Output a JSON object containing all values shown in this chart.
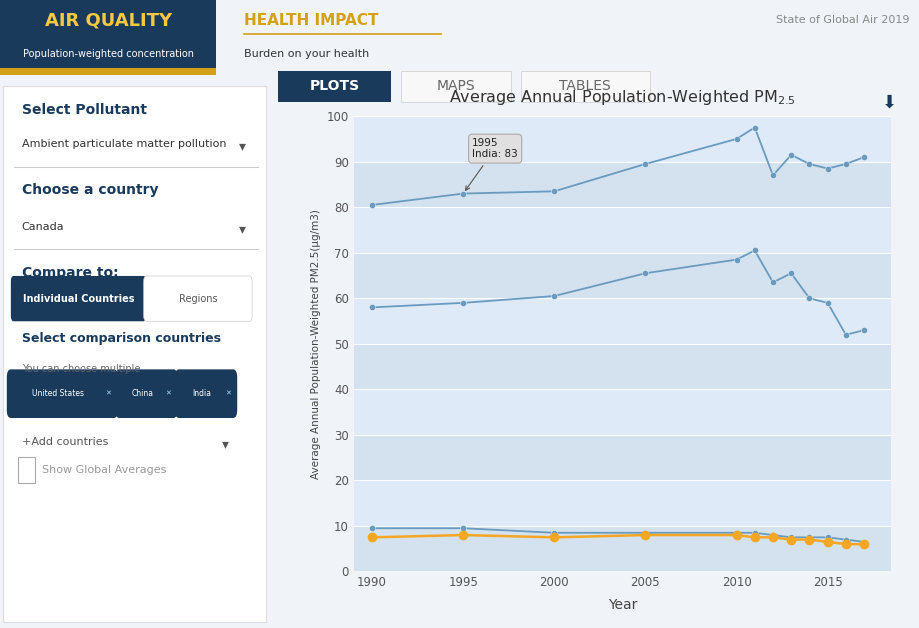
{
  "title": "Average Annual Population-Weighted PM$_{2.5}$",
  "xlabel": "Year",
  "ylabel": "Average Annual Population-Weighted PM2.5(μg/m3)",
  "xlim": [
    1989,
    2018.5
  ],
  "ylim": [
    0,
    100
  ],
  "yticks": [
    0,
    10,
    20,
    30,
    40,
    50,
    60,
    70,
    80,
    90,
    100
  ],
  "xticks": [
    1990,
    1995,
    2000,
    2005,
    2010,
    2015
  ],
  "bg_color": "#f0f4f8",
  "plot_bg": "#deeaf7",
  "blue_color": "#6a9bbf",
  "canada_color": "#f5a623",
  "india": {
    "years": [
      1990,
      1995,
      2000,
      2005,
      2010,
      2011,
      2012,
      2013,
      2014,
      2015,
      2016,
      2017
    ],
    "values": [
      80.5,
      83.0,
      83.5,
      89.5,
      95.0,
      97.5,
      87.0,
      91.5,
      89.5,
      88.5,
      89.5,
      91.0
    ]
  },
  "china": {
    "years": [
      1990,
      1995,
      2000,
      2005,
      2010,
      2011,
      2012,
      2013,
      2014,
      2015,
      2016,
      2017
    ],
    "values": [
      58.0,
      59.0,
      60.5,
      65.5,
      68.5,
      70.5,
      63.5,
      65.5,
      60.0,
      59.0,
      52.0,
      53.0
    ]
  },
  "us": {
    "years": [
      1990,
      1995,
      2000,
      2005,
      2010,
      2011,
      2012,
      2013,
      2014,
      2015,
      2016,
      2017
    ],
    "values": [
      9.5,
      9.5,
      8.5,
      8.5,
      8.5,
      8.5,
      8.0,
      7.5,
      7.5,
      7.5,
      7.0,
      6.5
    ]
  },
  "canada": {
    "years": [
      1990,
      1995,
      2000,
      2005,
      2010,
      2011,
      2012,
      2013,
      2014,
      2015,
      2016,
      2017
    ],
    "values": [
      7.5,
      8.0,
      7.5,
      8.0,
      8.0,
      7.5,
      7.5,
      7.0,
      7.0,
      6.5,
      6.0,
      6.0
    ]
  },
  "header_bg": "#1a3a5c",
  "header_text": "AIR QUALITY",
  "header_sub": "Population-weighted concentration",
  "health_text": "HEALTH IMPACT",
  "health_sub": "Burden on your health",
  "credit": "State of Global Air 2019",
  "tab_plots": "PLOTS",
  "tab_maps": "MAPS",
  "tab_tables": "TABLES"
}
